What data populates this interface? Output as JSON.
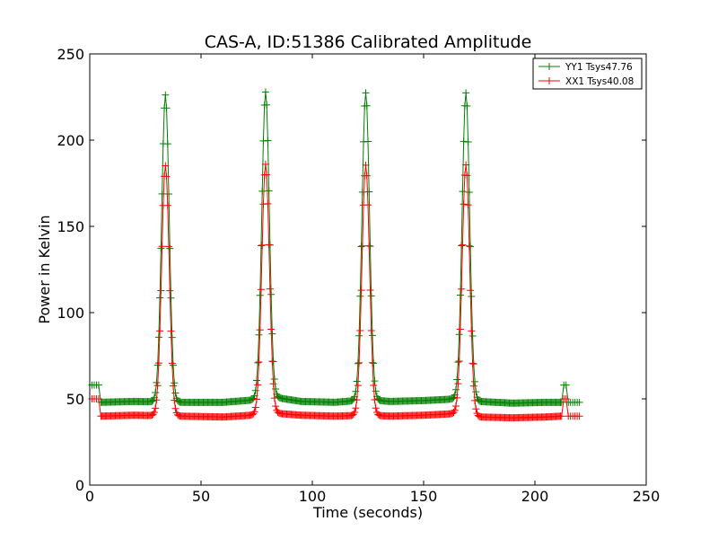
{
  "chart_data": {
    "type": "line",
    "title": "CAS-A, ID:51386 Calibrated Amplitude",
    "xlabel": "Time (seconds)",
    "ylabel": "Power in Kelvin",
    "xlim": [
      0,
      250
    ],
    "ylim": [
      0,
      250
    ],
    "xticks": [
      0,
      50,
      100,
      150,
      200,
      250
    ],
    "yticks": [
      0,
      50,
      100,
      150,
      200,
      250
    ],
    "grid": false,
    "legend_position": "top-right",
    "series": [
      {
        "name": "YY1 Tsys47.76",
        "color": "#008000",
        "marker": "+",
        "edge_points": {
          "x": [
            1,
            2,
            3,
            4,
            213,
            214,
            215,
            216,
            217,
            218,
            219,
            220
          ],
          "y": [
            58,
            58,
            58,
            58,
            58,
            58,
            48,
            48,
            48,
            48,
            48,
            48
          ]
        },
        "baseline_samples": {
          "x": [
            5,
            20,
            40,
            60,
            85,
            95,
            110,
            125,
            135,
            150,
            165,
            175,
            190,
            205,
            212
          ],
          "y": [
            48,
            48.5,
            48,
            48,
            50.5,
            48.5,
            48,
            49.5,
            48.5,
            49,
            50,
            48.5,
            47.5,
            48,
            48
          ]
        },
        "peaks": [
          {
            "center": 34,
            "peak": 226,
            "baseline": 48
          },
          {
            "center": 79,
            "peak": 226,
            "baseline": 48
          },
          {
            "center": 124,
            "peak": 226,
            "baseline": 48
          },
          {
            "center": 169,
            "peak": 226,
            "baseline": 48
          }
        ]
      },
      {
        "name": "XX1 Tsys40.08",
        "color": "#ff0000",
        "marker": "+",
        "edge_points": {
          "x": [
            1,
            2,
            3,
            4,
            213,
            214,
            215,
            216,
            217,
            218,
            219,
            220
          ],
          "y": [
            50,
            50,
            50,
            50,
            50,
            50,
            40,
            40,
            40,
            40,
            40,
            40
          ]
        },
        "baseline_samples": {
          "x": [
            5,
            20,
            40,
            60,
            85,
            95,
            110,
            125,
            135,
            150,
            165,
            175,
            190,
            205,
            212
          ],
          "y": [
            40,
            40.5,
            40,
            39.5,
            41.5,
            40.5,
            40,
            40.5,
            40,
            40.5,
            41.5,
            39.5,
            39,
            39.5,
            40
          ]
        },
        "peaks": [
          {
            "center": 34,
            "peak": 185,
            "baseline": 40
          },
          {
            "center": 79,
            "peak": 185,
            "baseline": 40
          },
          {
            "center": 124,
            "peak": 185,
            "baseline": 40
          },
          {
            "center": 169,
            "peak": 185,
            "baseline": 40
          }
        ]
      }
    ]
  }
}
